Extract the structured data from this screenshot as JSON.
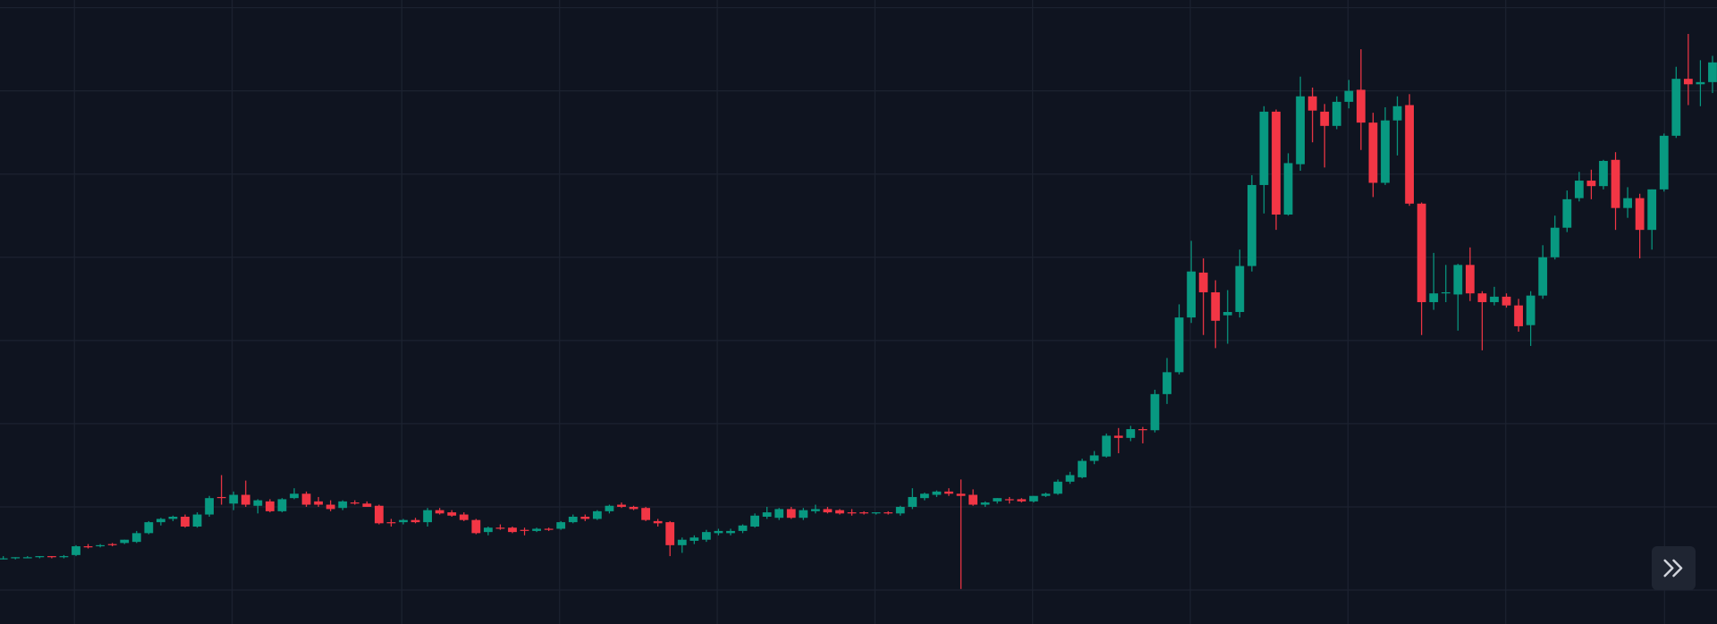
{
  "chart_data": {
    "type": "candlestick",
    "background": "#0f1420",
    "grid_color": "#1c2230",
    "up_color": "#089981",
    "down_color": "#f23645",
    "grid": true,
    "xlim": [
      -0.27,
      141.37
    ],
    "ylim": [
      -31,
      539
    ],
    "xgrid": [
      5.87,
      18.88,
      32.88,
      45.89,
      58.9,
      71.91,
      84.91,
      97.92,
      110.93,
      123.94,
      137.04
    ],
    "ygrid": [
      0,
      76,
      152,
      228,
      304,
      380,
      456,
      532
    ],
    "open": [
      29,
      29,
      30,
      30,
      31,
      30,
      32,
      40,
      40,
      42,
      43,
      44,
      52,
      62,
      65,
      67,
      58,
      69,
      85,
      79,
      87,
      77,
      81,
      72,
      84,
      88,
      81,
      78,
      75,
      80,
      79,
      77,
      62,
      62,
      64,
      62,
      73,
      71,
      69,
      64,
      53,
      57,
      57,
      55,
      54,
      56,
      56,
      62,
      67,
      65,
      72,
      78,
      76,
      75,
      63,
      62,
      41,
      45,
      46,
      52,
      52,
      54,
      58,
      67,
      66,
      74,
      66,
      72,
      74,
      73,
      71,
      71,
      70,
      71,
      70,
      76,
      84,
      87,
      90,
      88,
      87,
      78,
      81,
      83,
      83,
      81,
      86,
      88,
      99,
      103,
      118,
      122,
      141,
      139,
      147,
      146,
      179,
      199,
      249,
      290,
      272,
      251,
      254,
      296,
      370,
      437,
      343,
      389,
      451,
      437,
      424,
      446,
      457,
      427,
      372,
      429,
      443,
      353,
      263,
      271,
      270,
      297,
      271,
      263,
      268,
      260,
      242,
      269,
      304,
      331,
      358,
      374,
      369,
      393,
      349,
      358,
      329,
      366,
      415,
      467,
      462,
      464
    ],
    "high": [
      31,
      30,
      31,
      31,
      31,
      32,
      41,
      42,
      42,
      43,
      46,
      54,
      63,
      66,
      68,
      69,
      71,
      86,
      105,
      90,
      100,
      83,
      83,
      84,
      93,
      90,
      85,
      82,
      82,
      82,
      81,
      78,
      65,
      65,
      66,
      75,
      75,
      73,
      71,
      65,
      58,
      60,
      58,
      57,
      57,
      57,
      63,
      69,
      69,
      73,
      78,
      80,
      77,
      76,
      65,
      63,
      48,
      50,
      55,
      56,
      56,
      60,
      70,
      76,
      75,
      76,
      75,
      78,
      76,
      74,
      74,
      72,
      71,
      72,
      77,
      93,
      89,
      91,
      93,
      101,
      92,
      81,
      84,
      85,
      84,
      86,
      89,
      101,
      108,
      120,
      127,
      143,
      148,
      150,
      149,
      183,
      212,
      261,
      319,
      303,
      283,
      274,
      311,
      379,
      442,
      439,
      399,
      469,
      459,
      444,
      451,
      466,
      494,
      436,
      441,
      451,
      453,
      354,
      308,
      297,
      298,
      313,
      273,
      277,
      271,
      266,
      273,
      315,
      342,
      365,
      382,
      384,
      393,
      400,
      368,
      362,
      366,
      417,
      478,
      508,
      484,
      488
    ],
    "low": [
      28,
      28,
      29,
      29,
      29,
      29,
      31,
      38,
      39,
      40,
      42,
      43,
      51,
      59,
      63,
      57,
      57,
      67,
      78,
      73,
      76,
      70,
      71,
      71,
      83,
      76,
      76,
      72,
      73,
      78,
      76,
      60,
      58,
      60,
      61,
      58,
      69,
      67,
      63,
      51,
      50,
      55,
      52,
      50,
      53,
      54,
      55,
      61,
      63,
      64,
      70,
      75,
      73,
      63,
      58,
      31,
      34,
      42,
      44,
      50,
      50,
      52,
      57,
      65,
      64,
      65,
      64,
      70,
      70,
      69,
      68,
      69,
      69,
      69,
      68,
      74,
      82,
      85,
      86,
      1,
      77,
      76,
      79,
      79,
      80,
      80,
      85,
      87,
      97,
      102,
      115,
      121,
      125,
      136,
      134,
      144,
      170,
      197,
      244,
      233,
      221,
      225,
      249,
      291,
      344,
      329,
      342,
      383,
      409,
      386,
      421,
      440,
      402,
      359,
      370,
      397,
      351,
      233,
      256,
      263,
      237,
      264,
      219,
      260,
      258,
      236,
      223,
      266,
      302,
      327,
      355,
      357,
      366,
      329,
      340,
      303,
      311,
      364,
      413,
      443,
      442,
      454
    ],
    "close": [
      29,
      30,
      30,
      31,
      30,
      31,
      40,
      39,
      41,
      41,
      46,
      52,
      62,
      65,
      67,
      58,
      69,
      84,
      84,
      87,
      78,
      82,
      72,
      83,
      88,
      78,
      78,
      74,
      81,
      79,
      76,
      61,
      61,
      64,
      62,
      73,
      70,
      68,
      64,
      52,
      57,
      56,
      53,
      54,
      56,
      55,
      62,
      67,
      65,
      72,
      77,
      76,
      74,
      64,
      61,
      41,
      46,
      48,
      53,
      54,
      54,
      59,
      68,
      71,
      74,
      66,
      73,
      74,
      71,
      70,
      70,
      70,
      71,
      70,
      76,
      85,
      88,
      90,
      88,
      86,
      78,
      80,
      84,
      82,
      81,
      86,
      88,
      99,
      105,
      118,
      123,
      141,
      139,
      147,
      146,
      179,
      199,
      249,
      291,
      272,
      246,
      254,
      296,
      370,
      437,
      343,
      390,
      451,
      438,
      424,
      446,
      456,
      427,
      372,
      429,
      442,
      353,
      263,
      271,
      272,
      297,
      271,
      263,
      268,
      260,
      241,
      269,
      304,
      331,
      357,
      374,
      369,
      392,
      349,
      358,
      329,
      366,
      415,
      467,
      462,
      464,
      482
    ]
  }
}
